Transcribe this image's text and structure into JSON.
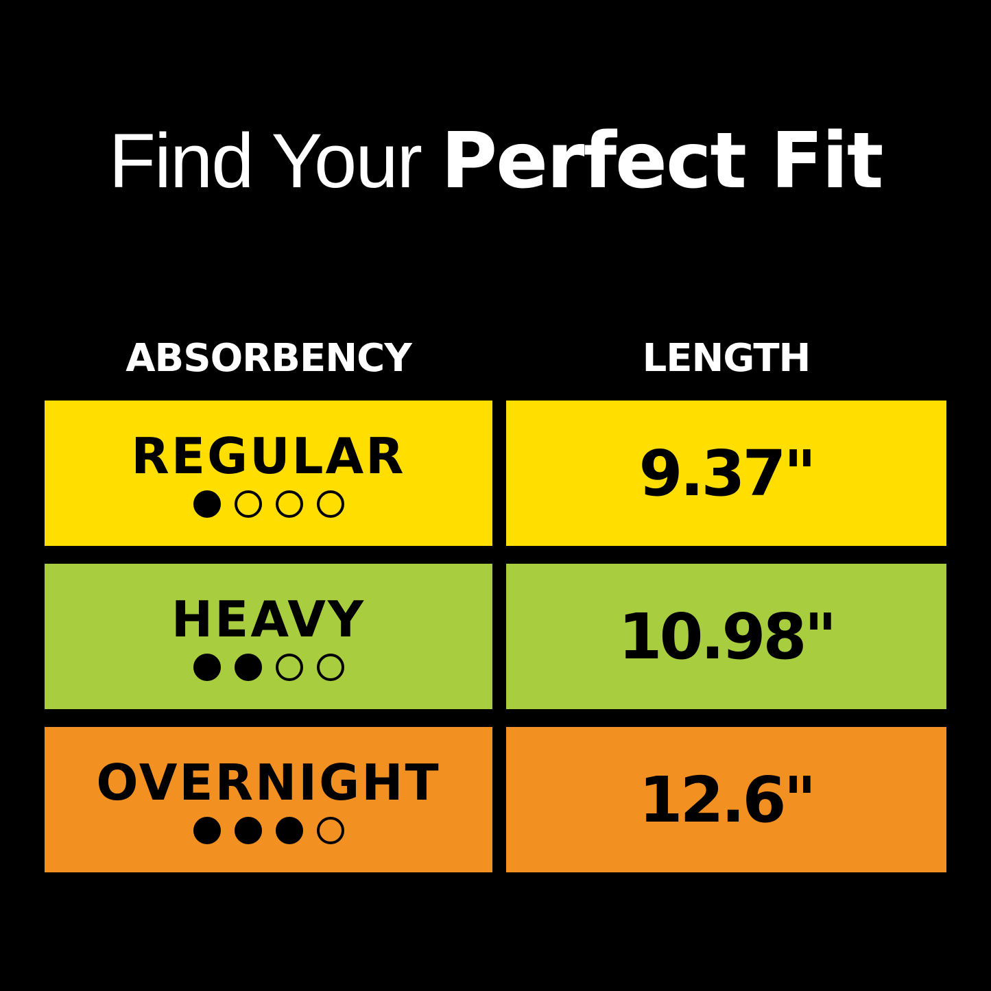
{
  "title": {
    "light": "Find Your ",
    "bold": "Perfect Fit"
  },
  "headers": {
    "absorbency": "ABSORBENCY",
    "length": "LENGTH"
  },
  "rows": [
    {
      "label": "REGULAR",
      "level": 1,
      "max_level": 4,
      "length": "9.37\"",
      "color": "#FFDE00"
    },
    {
      "label": "HEAVY",
      "level": 2,
      "max_level": 4,
      "length": "10.98\"",
      "color": "#A8CE3F"
    },
    {
      "label": "OVERNIGHT",
      "level": 3,
      "max_level": 4,
      "length": "12.6\"",
      "color": "#F39022"
    }
  ]
}
